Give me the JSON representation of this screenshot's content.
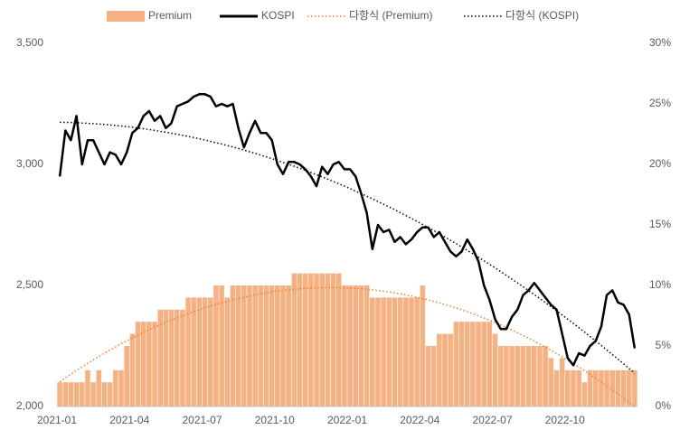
{
  "chart_data": {
    "type": "combo",
    "categories": [
      "2021-01",
      null,
      null,
      null,
      null,
      null,
      null,
      null,
      null,
      null,
      null,
      null,
      null,
      "2021-04",
      null,
      null,
      null,
      null,
      null,
      null,
      null,
      null,
      null,
      null,
      null,
      null,
      "2021-07",
      null,
      null,
      null,
      null,
      null,
      null,
      null,
      null,
      null,
      null,
      null,
      null,
      "2021-10",
      null,
      null,
      null,
      null,
      null,
      null,
      null,
      null,
      null,
      null,
      null,
      null,
      "2022-01",
      null,
      null,
      null,
      null,
      null,
      null,
      null,
      null,
      null,
      null,
      null,
      null,
      "2022-04",
      null,
      null,
      null,
      null,
      null,
      null,
      null,
      null,
      null,
      null,
      null,
      null,
      "2022-07",
      null,
      null,
      null,
      null,
      null,
      null,
      null,
      null,
      null,
      null,
      null,
      null,
      "2022-10",
      null,
      null,
      null,
      null,
      null,
      null,
      null,
      null,
      null,
      null,
      null,
      null
    ],
    "series": [
      {
        "name": "Premium",
        "kind": "bar",
        "axis": "y2",
        "color": "#f4b183",
        "values": [
          2,
          2,
          2,
          2,
          2,
          3,
          2,
          3,
          2,
          2,
          3,
          3,
          5,
          6,
          7,
          7,
          7,
          7,
          8,
          8,
          8,
          8,
          8,
          9,
          9,
          9,
          9,
          9,
          10,
          10,
          9,
          10,
          10,
          10,
          10,
          10,
          10,
          10,
          10,
          10,
          10,
          10,
          11,
          11,
          11,
          11,
          11,
          11,
          11,
          11,
          11,
          10,
          10,
          10,
          10,
          10,
          9,
          9,
          9,
          9,
          9,
          9,
          9,
          9,
          9,
          10,
          5,
          5,
          6,
          6,
          6,
          7,
          7,
          7,
          7,
          7,
          7,
          7,
          6,
          5,
          5,
          5,
          5,
          5,
          5,
          5,
          5,
          5,
          4,
          3,
          4,
          3,
          3,
          3,
          2,
          3,
          3,
          3,
          3,
          3,
          3,
          3,
          3,
          3
        ]
      },
      {
        "name": "KOSPI",
        "kind": "line",
        "axis": "y",
        "color": "#000000",
        "values": [
          2950,
          3140,
          3100,
          3200,
          3000,
          3100,
          3100,
          3050,
          3000,
          3050,
          3040,
          3000,
          3050,
          3130,
          3150,
          3200,
          3220,
          3180,
          3200,
          3150,
          3170,
          3240,
          3250,
          3260,
          3280,
          3290,
          3290,
          3280,
          3240,
          3250,
          3240,
          3250,
          3150,
          3070,
          3130,
          3180,
          3130,
          3130,
          3100,
          3000,
          2960,
          3010,
          3010,
          3000,
          2980,
          2950,
          2910,
          2990,
          2960,
          3000,
          3010,
          2980,
          2980,
          2950,
          2880,
          2800,
          2650,
          2750,
          2720,
          2730,
          2680,
          2700,
          2670,
          2690,
          2720,
          2740,
          2740,
          2700,
          2720,
          2680,
          2640,
          2620,
          2640,
          2690,
          2650,
          2600,
          2500,
          2440,
          2360,
          2320,
          2320,
          2370,
          2400,
          2460,
          2480,
          2510,
          2480,
          2450,
          2420,
          2400,
          2300,
          2200,
          2170,
          2220,
          2210,
          2250,
          2270,
          2330,
          2460,
          2480,
          2430,
          2420,
          2380,
          2240
        ]
      },
      {
        "name": "다항식 (Premium)",
        "kind": "trend",
        "of": 0,
        "axis": "y2",
        "color": "#ed7d31"
      },
      {
        "name": "다항식 (KOSPI)",
        "kind": "trend",
        "of": 1,
        "axis": "y",
        "color": "#000000"
      }
    ],
    "ylim": [
      2000,
      3500
    ],
    "yticks": [
      {
        "value": 2000,
        "label": "2,000"
      },
      {
        "value": 2500,
        "label": "2,500"
      },
      {
        "value": 3000,
        "label": "3,000"
      },
      {
        "value": 3500,
        "label": "3,500"
      }
    ],
    "y2lim": [
      0,
      30
    ],
    "y2ticks": [
      {
        "value": 0,
        "label": "0%"
      },
      {
        "value": 5,
        "label": "5%"
      },
      {
        "value": 10,
        "label": "10%"
      },
      {
        "value": 15,
        "label": "15%"
      },
      {
        "value": 20,
        "label": "20%"
      },
      {
        "value": 25,
        "label": "25%"
      },
      {
        "value": 30,
        "label": "30%"
      }
    ],
    "legend": "top"
  }
}
